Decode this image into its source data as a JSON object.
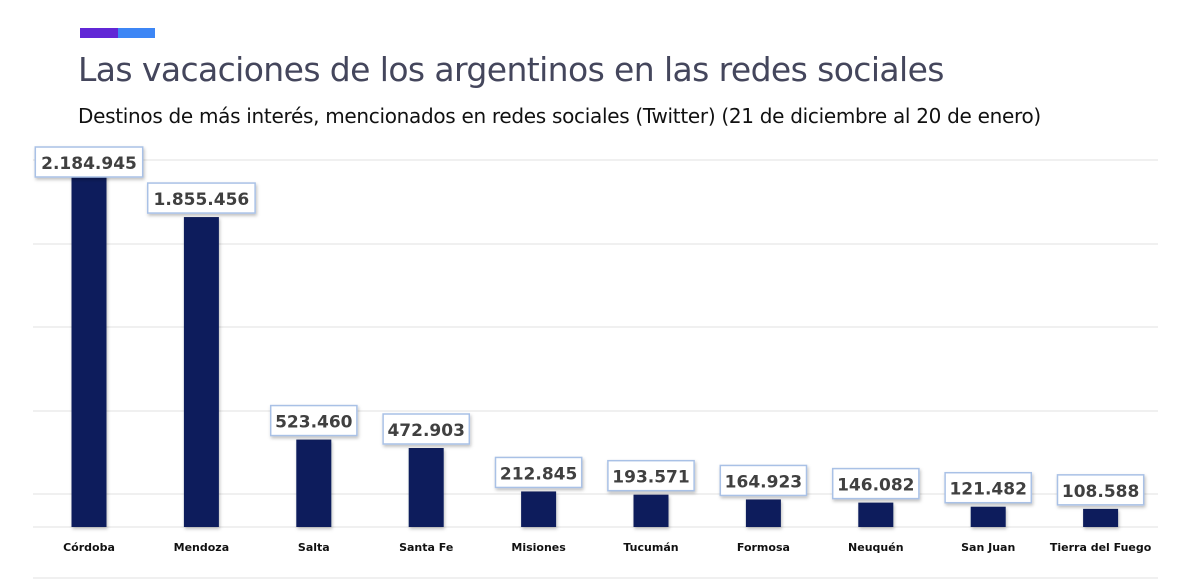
{
  "header": {
    "title": "Las vacaciones de los argentinos en las redes sociales",
    "subtitle": "Destinos de más interés, mencionados en redes sociales (Twitter) (21 de diciembre al 20 de enero)",
    "accent_colors": [
      "#6127d6",
      "#3d86f5"
    ]
  },
  "chart_data": {
    "type": "bar",
    "title": "Las vacaciones de los argentinos en las redes sociales",
    "subtitle": "Destinos de más interés, mencionados en redes sociales (Twitter) (21 de diciembre al 20 de enero)",
    "categories": [
      "Córdoba",
      "Mendoza",
      "Salta",
      "Santa Fe",
      "Misiones",
      "Tucumán",
      "Formosa",
      "Neuquén",
      "San Juan",
      "Tierra del Fuego"
    ],
    "values": [
      2184945,
      1855456,
      523460,
      472903,
      212845,
      193571,
      164923,
      146082,
      121482,
      108588
    ],
    "data_labels": [
      "2.184.945",
      "1.855.456",
      "523.460",
      "472.903",
      "212.845",
      "193.571",
      "164.923",
      "146.082",
      "121.482",
      "108.588"
    ],
    "xlabel": "",
    "ylabel": "",
    "ylim": [
      0,
      2200000
    ],
    "grid": true,
    "legend": "none",
    "bar_color": "#0b1f5c"
  }
}
